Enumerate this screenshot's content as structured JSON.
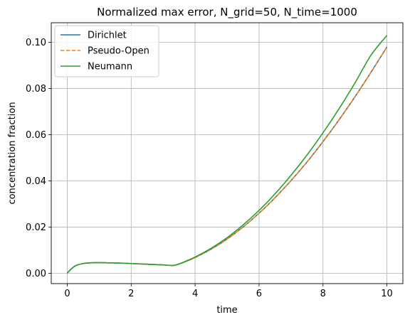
{
  "chart_data": {
    "type": "line",
    "title": "Normalized max error, N_grid=50, N_time=1000",
    "xlabel": "time",
    "ylabel": "concentration fraction",
    "xlim": [
      -0.5,
      10.5
    ],
    "ylim": [
      -0.0045,
      0.1085
    ],
    "xticks": [
      0,
      2,
      4,
      6,
      8,
      10
    ],
    "yticks": [
      0.0,
      0.02,
      0.04,
      0.06,
      0.08,
      0.1
    ],
    "xtick_labels": [
      "0",
      "2",
      "4",
      "6",
      "8",
      "10"
    ],
    "ytick_labels": [
      "0.00",
      "0.02",
      "0.04",
      "0.06",
      "0.08",
      "0.10"
    ],
    "grid": true,
    "legend_position": "top-left",
    "x": [
      0,
      0.1,
      0.2,
      0.3,
      0.5,
      0.7,
      1.0,
      1.3,
      1.6,
      2.0,
      2.5,
      3.0,
      3.33,
      3.6,
      4.0,
      4.5,
      5.0,
      5.5,
      6.0,
      6.5,
      7.0,
      7.5,
      8.0,
      8.5,
      9.0,
      9.5,
      10.0
    ],
    "series": [
      {
        "name": "Dirichlet",
        "color": "#1f77b4",
        "style": "solid",
        "values": [
          0.0,
          0.0015,
          0.0027,
          0.0035,
          0.0042,
          0.0045,
          0.0046,
          0.0045,
          0.0044,
          0.0042,
          0.0039,
          0.0036,
          0.0034,
          0.0045,
          0.0068,
          0.0104,
          0.0148,
          0.02,
          0.026,
          0.0327,
          0.0401,
          0.0482,
          0.057,
          0.0664,
          0.0764,
          0.087,
          0.098
        ]
      },
      {
        "name": "Pseudo-Open",
        "color": "#ff7f0e",
        "style": "dashed",
        "values": [
          0.0,
          0.0015,
          0.0027,
          0.0035,
          0.0042,
          0.0045,
          0.0046,
          0.0045,
          0.0044,
          0.0042,
          0.0039,
          0.0036,
          0.0034,
          0.0045,
          0.0068,
          0.0104,
          0.0148,
          0.02,
          0.026,
          0.0327,
          0.0401,
          0.0482,
          0.057,
          0.0664,
          0.0764,
          0.087,
          0.098
        ]
      },
      {
        "name": "Neumann",
        "color": "#2ca02c",
        "style": "solid",
        "values": [
          0.0,
          0.0015,
          0.0027,
          0.0035,
          0.0042,
          0.0045,
          0.0046,
          0.0045,
          0.0044,
          0.0042,
          0.0039,
          0.0036,
          0.0034,
          0.0046,
          0.007,
          0.0108,
          0.0154,
          0.0209,
          0.0272,
          0.0344,
          0.0424,
          0.0512,
          0.0608,
          0.0712,
          0.0824,
          0.0944,
          0.103
        ]
      }
    ]
  }
}
